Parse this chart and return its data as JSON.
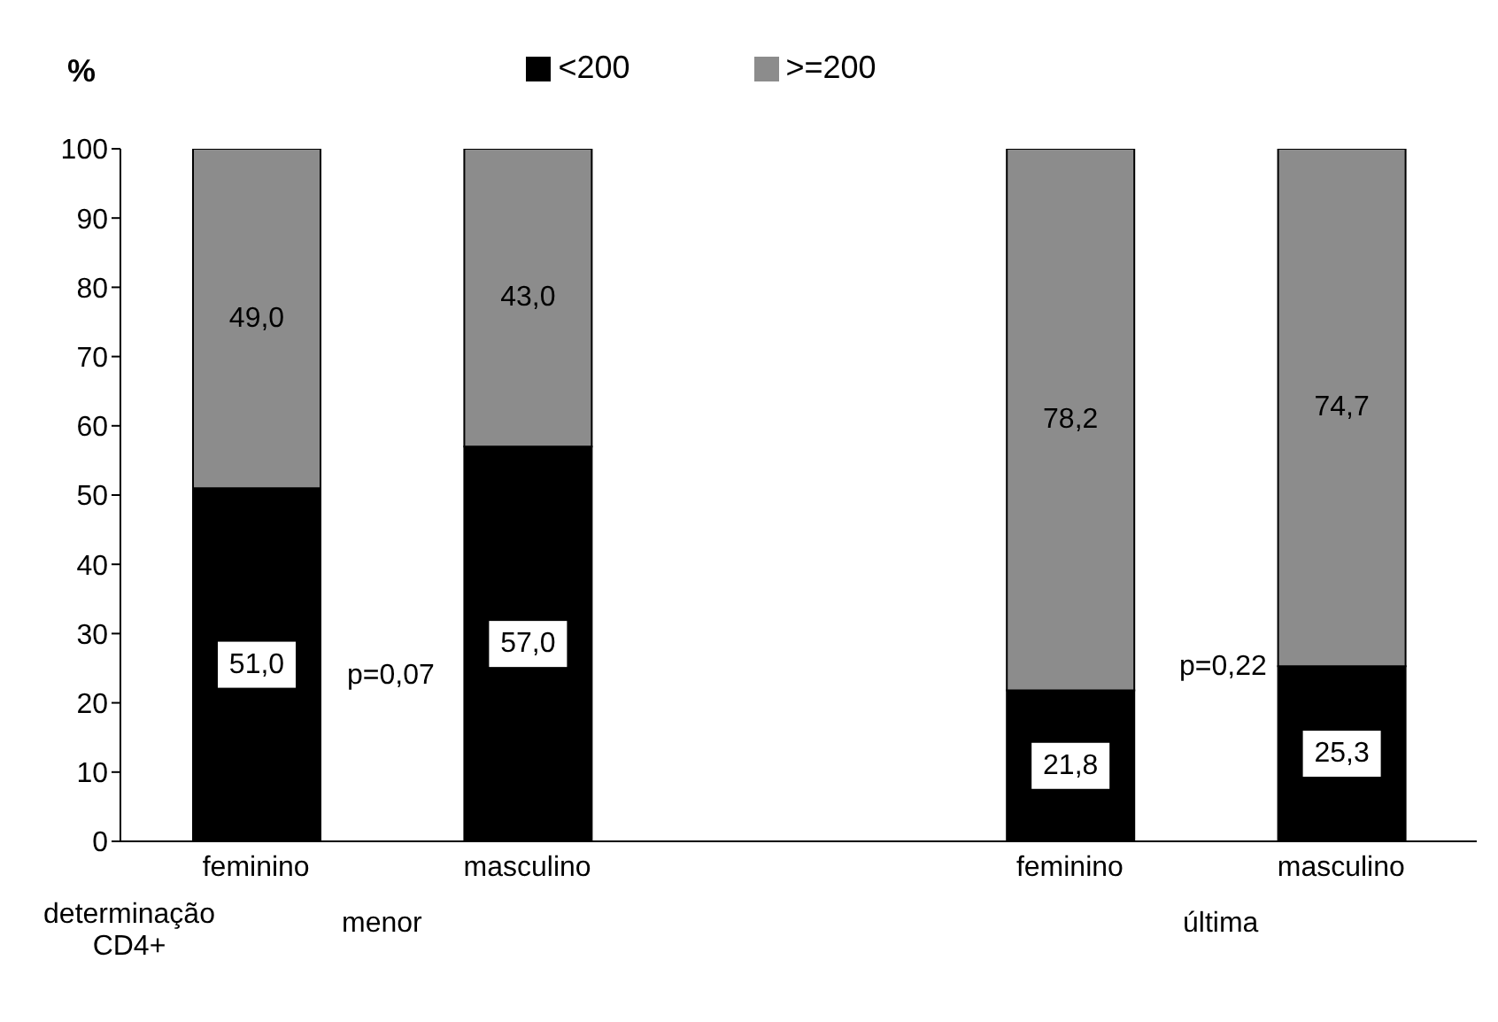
{
  "chart_data": {
    "type": "bar",
    "stacked": true,
    "ylabel": "%",
    "xlabel": "determinação CD4+",
    "categories": [
      "feminino",
      "masculino",
      null,
      "feminino",
      "masculino"
    ],
    "series": [
      {
        "name": "<200",
        "color": "#000000",
        "values": [
          51.0,
          57.0,
          null,
          21.8,
          25.3
        ],
        "value_labels": [
          "51,0",
          "57,0",
          null,
          "21,8",
          "25,3"
        ]
      },
      {
        "name": ">=200",
        "color": "#8c8c8c",
        "values": [
          49.0,
          43.0,
          null,
          78.2,
          74.7
        ],
        "value_labels": [
          "49,0",
          "43,0",
          null,
          "78,2",
          "74,7"
        ]
      }
    ],
    "ylim": [
      0,
      100
    ],
    "yticks": [
      0,
      10,
      20,
      30,
      40,
      50,
      60,
      70,
      80,
      90,
      100
    ],
    "grid": false,
    "legend": "top",
    "annotations": [
      "p=0,07",
      "p=0,22",
      "menor",
      "última"
    ]
  }
}
